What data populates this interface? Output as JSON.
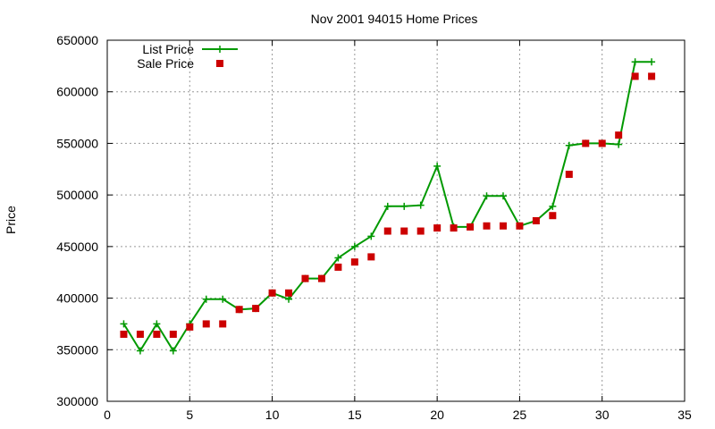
{
  "chart_data": {
    "type": "line",
    "title": "Nov 2001 94015 Home Prices",
    "xlabel": "",
    "ylabel": "Price",
    "xlim": [
      0,
      35
    ],
    "ylim": [
      300000,
      650000
    ],
    "x_ticks": [
      0,
      5,
      10,
      15,
      20,
      25,
      30,
      35
    ],
    "y_ticks": [
      300000,
      350000,
      400000,
      450000,
      500000,
      550000,
      600000,
      650000
    ],
    "grid": true,
    "legend_position": "top-left",
    "series": [
      {
        "name": "List Price",
        "style": "line-plus",
        "color": "#009900",
        "x": [
          1,
          2,
          3,
          4,
          5,
          6,
          7,
          8,
          9,
          10,
          11,
          12,
          13,
          14,
          15,
          16,
          17,
          18,
          19,
          20,
          21,
          22,
          23,
          24,
          25,
          26,
          27,
          28,
          29,
          30,
          31,
          32,
          33
        ],
        "y": [
          375000,
          349000,
          375000,
          349000,
          375000,
          399000,
          399000,
          389000,
          390000,
          405000,
          399000,
          419000,
          419000,
          439000,
          450000,
          460000,
          489000,
          489000,
          490000,
          528000,
          469000,
          469000,
          499000,
          499000,
          470000,
          475000,
          489000,
          548000,
          550000,
          550000,
          549000,
          629000,
          629000
        ]
      },
      {
        "name": "Sale Price",
        "style": "square-points",
        "color": "#cc0000",
        "x": [
          1,
          2,
          3,
          4,
          5,
          6,
          7,
          8,
          9,
          10,
          11,
          12,
          13,
          14,
          15,
          16,
          17,
          18,
          19,
          20,
          21,
          22,
          23,
          24,
          25,
          26,
          27,
          28,
          29,
          30,
          31,
          32,
          33
        ],
        "y": [
          365000,
          365000,
          365000,
          365000,
          372000,
          375000,
          375000,
          389000,
          390000,
          405000,
          405000,
          419000,
          419000,
          430000,
          435000,
          440000,
          465000,
          465000,
          465000,
          468000,
          468000,
          469000,
          470000,
          470000,
          470000,
          475000,
          480000,
          520000,
          550000,
          550000,
          558000,
          615000,
          615000
        ]
      }
    ]
  }
}
